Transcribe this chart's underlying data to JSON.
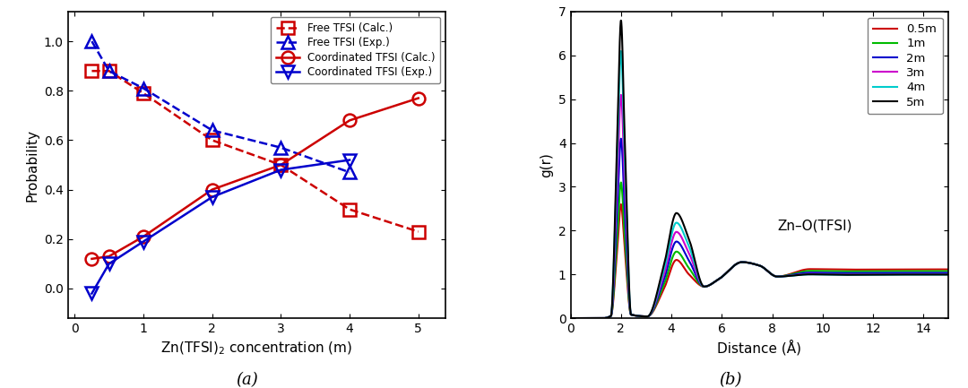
{
  "panel_a": {
    "title": "(a)",
    "xlabel": "Zn(TFSI)$_2$ concentration (m)",
    "ylabel": "Probability",
    "xlim": [
      -0.1,
      5.4
    ],
    "ylim": [
      -0.12,
      1.12
    ],
    "xticks": [
      0,
      1,
      2,
      3,
      4,
      5
    ],
    "yticks": [
      0,
      0.2,
      0.4,
      0.6,
      0.8,
      1
    ],
    "series": {
      "free_tfsi_calc": {
        "x": [
          0.25,
          0.5,
          1,
          2,
          3,
          4,
          5
        ],
        "y": [
          0.88,
          0.88,
          0.79,
          0.6,
          0.5,
          0.32,
          0.23
        ],
        "color": "#cc0000",
        "linestyle": "--",
        "marker": "s",
        "label": "Free TFSI (Calc.)"
      },
      "free_tfsi_exp": {
        "x": [
          0.25,
          0.5,
          1,
          2,
          3,
          4
        ],
        "y": [
          1.0,
          0.88,
          0.81,
          0.64,
          0.57,
          0.47
        ],
        "color": "#0000cc",
        "linestyle": "--",
        "marker": "^",
        "label": "Free TFSI (Exp.)"
      },
      "coord_tfsi_calc": {
        "x": [
          0.25,
          0.5,
          1,
          2,
          3,
          4,
          5
        ],
        "y": [
          0.12,
          0.13,
          0.21,
          0.4,
          0.5,
          0.68,
          0.77
        ],
        "color": "#cc0000",
        "linestyle": "-",
        "marker": "o",
        "label": "Coordinated TFSI (Calc.)"
      },
      "coord_tfsi_exp": {
        "x": [
          0.25,
          0.5,
          1,
          2,
          3,
          4
        ],
        "y": [
          -0.02,
          0.1,
          0.19,
          0.37,
          0.48,
          0.52
        ],
        "color": "#0000cc",
        "linestyle": "-",
        "marker": "v",
        "label": "Coordinated TFSI (Exp.)"
      }
    }
  },
  "panel_b": {
    "title": "(b)",
    "xlabel": "Distance (Å)",
    "ylabel": "g(r)",
    "annotation": "Zn–O(TFSI)",
    "xlim": [
      0,
      15
    ],
    "ylim": [
      0,
      7
    ],
    "xticks": [
      0,
      2,
      4,
      6,
      8,
      10,
      12,
      14
    ],
    "yticks": [
      0,
      1,
      2,
      3,
      4,
      5,
      6,
      7
    ],
    "concentrations": [
      "0.5m",
      "1m",
      "2m",
      "3m",
      "4m",
      "5m"
    ],
    "colors": [
      "#cc0000",
      "#00bb00",
      "#0000cc",
      "#cc00cc",
      "#00cccc",
      "#000000"
    ],
    "peak1_heights": [
      2.6,
      3.1,
      4.1,
      5.1,
      6.1,
      6.8
    ],
    "peak2_heights": [
      1.33,
      1.52,
      1.75,
      1.97,
      2.18,
      2.4
    ],
    "tail_values": [
      1.12,
      1.08,
      1.04,
      1.01,
      1.0,
      1.0
    ]
  }
}
